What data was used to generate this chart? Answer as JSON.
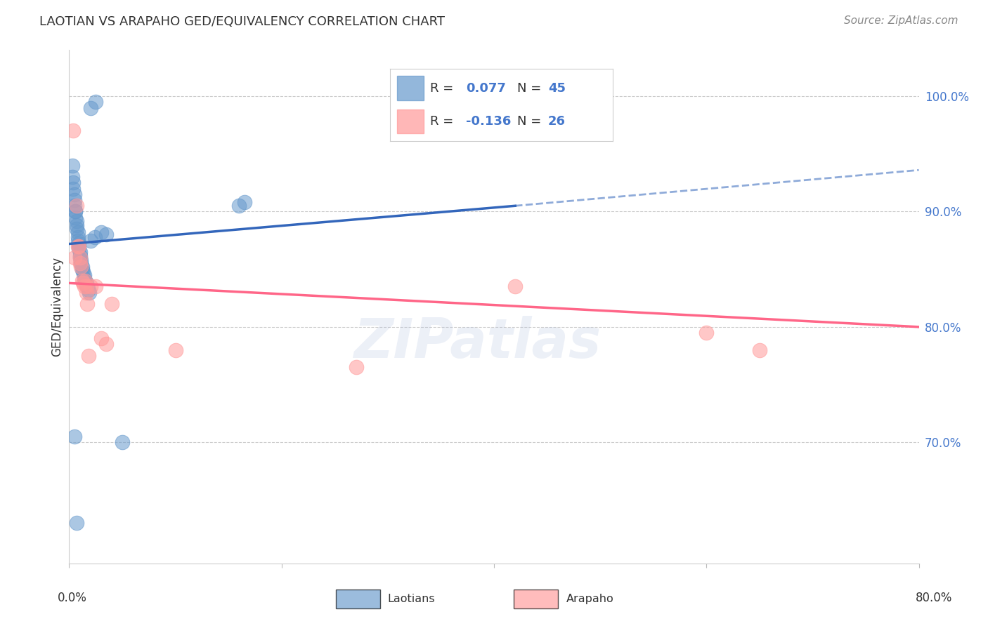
{
  "title": "LAOTIAN VS ARAPAHO GED/EQUIVALENCY CORRELATION CHART",
  "source": "Source: ZipAtlas.com",
  "ylabel": "GED/Equivalency",
  "ytick_labels": [
    "100.0%",
    "90.0%",
    "80.0%",
    "70.0%"
  ],
  "ytick_values": [
    1.0,
    0.9,
    0.8,
    0.7
  ],
  "xmin": 0.0,
  "xmax": 0.8,
  "ymin": 0.595,
  "ymax": 1.04,
  "laotian_R": 0.077,
  "laotian_N": 45,
  "arapaho_R": -0.136,
  "arapaho_N": 26,
  "laotian_color": "#6699CC",
  "arapaho_color": "#FF9999",
  "laotian_line_color": "#3366BB",
  "arapaho_line_color": "#FF6688",
  "laotian_line_x0": 0.0,
  "laotian_line_y0": 0.872,
  "laotian_line_x1": 0.42,
  "laotian_line_y1": 0.905,
  "laotian_line_x1_ext": 0.8,
  "laotian_line_y1_ext": 0.936,
  "arapaho_line_x0": 0.0,
  "arapaho_line_y0": 0.838,
  "arapaho_line_x1": 0.8,
  "arapaho_line_y1": 0.8,
  "laotian_scatter_x": [
    0.02,
    0.025,
    0.003,
    0.003,
    0.004,
    0.004,
    0.005,
    0.005,
    0.005,
    0.006,
    0.006,
    0.006,
    0.007,
    0.007,
    0.007,
    0.008,
    0.008,
    0.008,
    0.009,
    0.009,
    0.009,
    0.01,
    0.01,
    0.01,
    0.011,
    0.011,
    0.012,
    0.012,
    0.013,
    0.014,
    0.014,
    0.015,
    0.016,
    0.017,
    0.018,
    0.019,
    0.02,
    0.024,
    0.03,
    0.035,
    0.05,
    0.16,
    0.165,
    0.005,
    0.007
  ],
  "laotian_scatter_y": [
    0.99,
    0.995,
    0.94,
    0.93,
    0.925,
    0.92,
    0.915,
    0.91,
    0.905,
    0.9,
    0.9,
    0.895,
    0.892,
    0.888,
    0.885,
    0.882,
    0.878,
    0.875,
    0.872,
    0.87,
    0.868,
    0.865,
    0.862,
    0.86,
    0.858,
    0.855,
    0.852,
    0.85,
    0.848,
    0.845,
    0.842,
    0.84,
    0.838,
    0.835,
    0.832,
    0.83,
    0.875,
    0.878,
    0.882,
    0.88,
    0.7,
    0.905,
    0.908,
    0.705,
    0.63
  ],
  "arapaho_scatter_x": [
    0.004,
    0.005,
    0.007,
    0.008,
    0.009,
    0.01,
    0.01,
    0.011,
    0.012,
    0.013,
    0.014,
    0.015,
    0.016,
    0.016,
    0.017,
    0.018,
    0.02,
    0.025,
    0.03,
    0.035,
    0.04,
    0.1,
    0.27,
    0.42,
    0.6,
    0.65
  ],
  "arapaho_scatter_y": [
    0.97,
    0.86,
    0.905,
    0.87,
    0.87,
    0.86,
    0.855,
    0.852,
    0.84,
    0.838,
    0.835,
    0.84,
    0.83,
    0.835,
    0.82,
    0.775,
    0.835,
    0.835,
    0.79,
    0.785,
    0.82,
    0.78,
    0.765,
    0.835,
    0.795,
    0.78
  ],
  "background_color": "#FFFFFF",
  "grid_color": "#CCCCCC",
  "watermark": "ZIPatlas",
  "watermark_color": "#AABBDD",
  "title_fontsize": 13,
  "source_fontsize": 11,
  "tick_fontsize": 12,
  "ylabel_fontsize": 12
}
